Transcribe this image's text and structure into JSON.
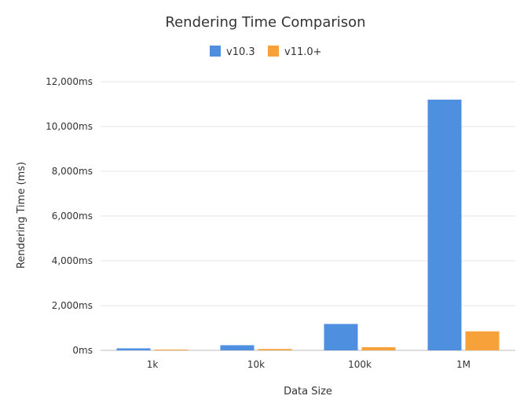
{
  "chart_data": {
    "type": "bar",
    "title": "Rendering Time Comparison",
    "xlabel": "Data Size",
    "ylabel": "Rendering Time (ms)",
    "categories": [
      "1k",
      "10k",
      "100k",
      "1M"
    ],
    "series": [
      {
        "name": "v10.3",
        "color": "#4f8fe0",
        "values": [
          90,
          230,
          1180,
          11200
        ]
      },
      {
        "name": "v11.0+",
        "color": "#f7a13a",
        "values": [
          20,
          60,
          140,
          850
        ]
      }
    ],
    "ylim": [
      0,
      12000
    ],
    "yticks": [
      0,
      2000,
      4000,
      6000,
      8000,
      10000,
      12000
    ],
    "ytick_labels": [
      "0ms",
      "2,000ms",
      "4,000ms",
      "6,000ms",
      "8,000ms",
      "10,000ms",
      "12,000ms"
    ],
    "grid": true,
    "legend_position": "top-center"
  }
}
